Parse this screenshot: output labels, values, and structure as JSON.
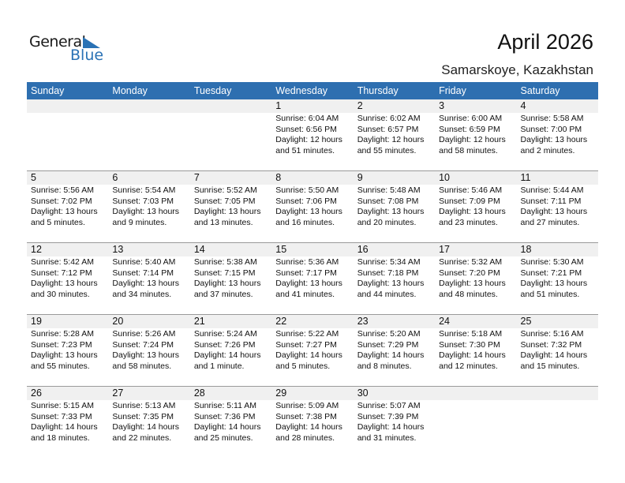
{
  "logo": {
    "text1": "General",
    "text2": "Blue",
    "color": "#2a72b5"
  },
  "title": "April 2026",
  "location": "Samarskoye, Kazakhstan",
  "header_color": "#2e6fb0",
  "days": [
    "Sunday",
    "Monday",
    "Tuesday",
    "Wednesday",
    "Thursday",
    "Friday",
    "Saturday"
  ],
  "weeks": [
    [
      null,
      null,
      null,
      {
        "day": "1",
        "sunrise": "Sunrise: 6:04 AM",
        "sunset": "Sunset: 6:56 PM",
        "daylight1": "Daylight: 12 hours",
        "daylight2": "and 51 minutes."
      },
      {
        "day": "2",
        "sunrise": "Sunrise: 6:02 AM",
        "sunset": "Sunset: 6:57 PM",
        "daylight1": "Daylight: 12 hours",
        "daylight2": "and 55 minutes."
      },
      {
        "day": "3",
        "sunrise": "Sunrise: 6:00 AM",
        "sunset": "Sunset: 6:59 PM",
        "daylight1": "Daylight: 12 hours",
        "daylight2": "and 58 minutes."
      },
      {
        "day": "4",
        "sunrise": "Sunrise: 5:58 AM",
        "sunset": "Sunset: 7:00 PM",
        "daylight1": "Daylight: 13 hours",
        "daylight2": "and 2 minutes."
      }
    ],
    [
      {
        "day": "5",
        "sunrise": "Sunrise: 5:56 AM",
        "sunset": "Sunset: 7:02 PM",
        "daylight1": "Daylight: 13 hours",
        "daylight2": "and 5 minutes."
      },
      {
        "day": "6",
        "sunrise": "Sunrise: 5:54 AM",
        "sunset": "Sunset: 7:03 PM",
        "daylight1": "Daylight: 13 hours",
        "daylight2": "and 9 minutes."
      },
      {
        "day": "7",
        "sunrise": "Sunrise: 5:52 AM",
        "sunset": "Sunset: 7:05 PM",
        "daylight1": "Daylight: 13 hours",
        "daylight2": "and 13 minutes."
      },
      {
        "day": "8",
        "sunrise": "Sunrise: 5:50 AM",
        "sunset": "Sunset: 7:06 PM",
        "daylight1": "Daylight: 13 hours",
        "daylight2": "and 16 minutes."
      },
      {
        "day": "9",
        "sunrise": "Sunrise: 5:48 AM",
        "sunset": "Sunset: 7:08 PM",
        "daylight1": "Daylight: 13 hours",
        "daylight2": "and 20 minutes."
      },
      {
        "day": "10",
        "sunrise": "Sunrise: 5:46 AM",
        "sunset": "Sunset: 7:09 PM",
        "daylight1": "Daylight: 13 hours",
        "daylight2": "and 23 minutes."
      },
      {
        "day": "11",
        "sunrise": "Sunrise: 5:44 AM",
        "sunset": "Sunset: 7:11 PM",
        "daylight1": "Daylight: 13 hours",
        "daylight2": "and 27 minutes."
      }
    ],
    [
      {
        "day": "12",
        "sunrise": "Sunrise: 5:42 AM",
        "sunset": "Sunset: 7:12 PM",
        "daylight1": "Daylight: 13 hours",
        "daylight2": "and 30 minutes."
      },
      {
        "day": "13",
        "sunrise": "Sunrise: 5:40 AM",
        "sunset": "Sunset: 7:14 PM",
        "daylight1": "Daylight: 13 hours",
        "daylight2": "and 34 minutes."
      },
      {
        "day": "14",
        "sunrise": "Sunrise: 5:38 AM",
        "sunset": "Sunset: 7:15 PM",
        "daylight1": "Daylight: 13 hours",
        "daylight2": "and 37 minutes."
      },
      {
        "day": "15",
        "sunrise": "Sunrise: 5:36 AM",
        "sunset": "Sunset: 7:17 PM",
        "daylight1": "Daylight: 13 hours",
        "daylight2": "and 41 minutes."
      },
      {
        "day": "16",
        "sunrise": "Sunrise: 5:34 AM",
        "sunset": "Sunset: 7:18 PM",
        "daylight1": "Daylight: 13 hours",
        "daylight2": "and 44 minutes."
      },
      {
        "day": "17",
        "sunrise": "Sunrise: 5:32 AM",
        "sunset": "Sunset: 7:20 PM",
        "daylight1": "Daylight: 13 hours",
        "daylight2": "and 48 minutes."
      },
      {
        "day": "18",
        "sunrise": "Sunrise: 5:30 AM",
        "sunset": "Sunset: 7:21 PM",
        "daylight1": "Daylight: 13 hours",
        "daylight2": "and 51 minutes."
      }
    ],
    [
      {
        "day": "19",
        "sunrise": "Sunrise: 5:28 AM",
        "sunset": "Sunset: 7:23 PM",
        "daylight1": "Daylight: 13 hours",
        "daylight2": "and 55 minutes."
      },
      {
        "day": "20",
        "sunrise": "Sunrise: 5:26 AM",
        "sunset": "Sunset: 7:24 PM",
        "daylight1": "Daylight: 13 hours",
        "daylight2": "and 58 minutes."
      },
      {
        "day": "21",
        "sunrise": "Sunrise: 5:24 AM",
        "sunset": "Sunset: 7:26 PM",
        "daylight1": "Daylight: 14 hours",
        "daylight2": "and 1 minute."
      },
      {
        "day": "22",
        "sunrise": "Sunrise: 5:22 AM",
        "sunset": "Sunset: 7:27 PM",
        "daylight1": "Daylight: 14 hours",
        "daylight2": "and 5 minutes."
      },
      {
        "day": "23",
        "sunrise": "Sunrise: 5:20 AM",
        "sunset": "Sunset: 7:29 PM",
        "daylight1": "Daylight: 14 hours",
        "daylight2": "and 8 minutes."
      },
      {
        "day": "24",
        "sunrise": "Sunrise: 5:18 AM",
        "sunset": "Sunset: 7:30 PM",
        "daylight1": "Daylight: 14 hours",
        "daylight2": "and 12 minutes."
      },
      {
        "day": "25",
        "sunrise": "Sunrise: 5:16 AM",
        "sunset": "Sunset: 7:32 PM",
        "daylight1": "Daylight: 14 hours",
        "daylight2": "and 15 minutes."
      }
    ],
    [
      {
        "day": "26",
        "sunrise": "Sunrise: 5:15 AM",
        "sunset": "Sunset: 7:33 PM",
        "daylight1": "Daylight: 14 hours",
        "daylight2": "and 18 minutes."
      },
      {
        "day": "27",
        "sunrise": "Sunrise: 5:13 AM",
        "sunset": "Sunset: 7:35 PM",
        "daylight1": "Daylight: 14 hours",
        "daylight2": "and 22 minutes."
      },
      {
        "day": "28",
        "sunrise": "Sunrise: 5:11 AM",
        "sunset": "Sunset: 7:36 PM",
        "daylight1": "Daylight: 14 hours",
        "daylight2": "and 25 minutes."
      },
      {
        "day": "29",
        "sunrise": "Sunrise: 5:09 AM",
        "sunset": "Sunset: 7:38 PM",
        "daylight1": "Daylight: 14 hours",
        "daylight2": "and 28 minutes."
      },
      {
        "day": "30",
        "sunrise": "Sunrise: 5:07 AM",
        "sunset": "Sunset: 7:39 PM",
        "daylight1": "Daylight: 14 hours",
        "daylight2": "and 31 minutes."
      },
      null,
      null
    ]
  ]
}
